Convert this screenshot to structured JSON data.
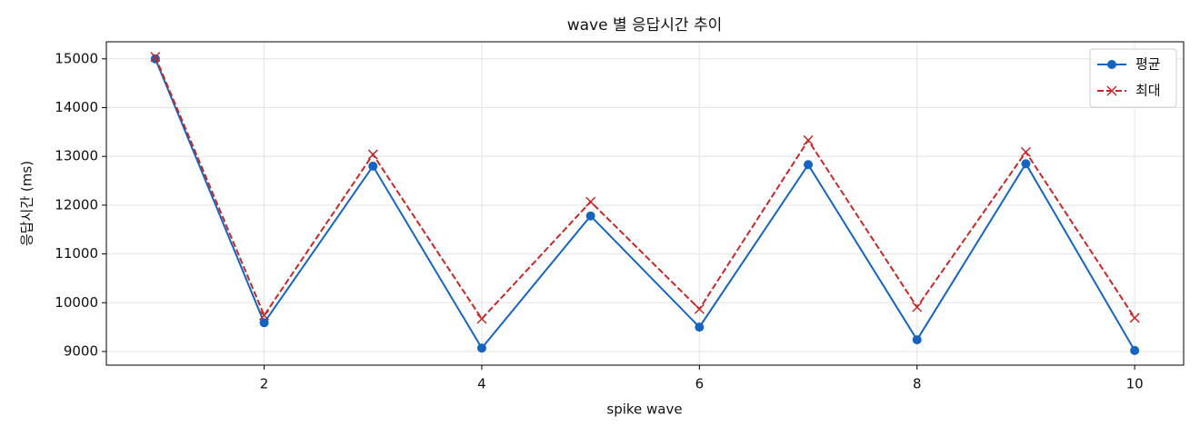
{
  "chart_data": {
    "type": "line",
    "title": "wave 별 응답시간 추이",
    "x_label": "spike wave",
    "y_label": "응답시간 (ms)",
    "x": [
      1,
      2,
      3,
      4,
      5,
      6,
      7,
      8,
      9,
      10
    ],
    "series": [
      {
        "name": "평균",
        "color": "#1565c0",
        "marker": "circle",
        "dash": "solid",
        "values": [
          15000,
          9590,
          12800,
          9070,
          11780,
          9500,
          12830,
          9240,
          12850,
          9020
        ]
      },
      {
        "name": "최대",
        "color": "#c62828",
        "marker": "x",
        "dash": "dashed",
        "values": [
          15040,
          9740,
          13040,
          9670,
          12070,
          9870,
          13330,
          9910,
          13090,
          9690
        ]
      }
    ],
    "xlim": [
      0.55,
      10.45
    ],
    "xticks": [
      2,
      4,
      6,
      8,
      10
    ],
    "ylim": [
      8720,
      15350
    ],
    "yticks": [
      9000,
      10000,
      11000,
      12000,
      13000,
      14000,
      15000
    ],
    "grid": true,
    "legend": "upper right"
  }
}
